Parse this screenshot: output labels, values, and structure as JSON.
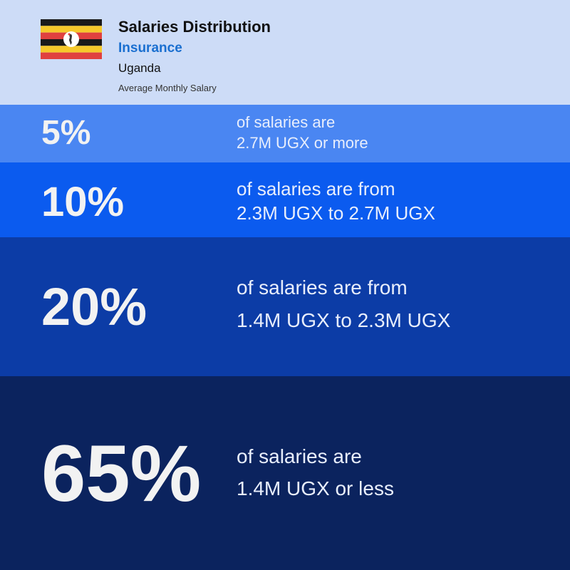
{
  "header": {
    "title": "Salaries Distribution",
    "sector": "Insurance",
    "country": "Uganda",
    "subtitle": "Average Monthly Salary"
  },
  "bands": [
    {
      "percent": "5%",
      "lines": [
        "of salaries are",
        "2.7M UGX or more"
      ]
    },
    {
      "percent": "10%",
      "lines": [
        "of salaries are from",
        "2.3M UGX to 2.7M UGX"
      ]
    },
    {
      "percent": "20%",
      "lines": [
        "of salaries are from",
        "1.4M UGX to 2.3M UGX"
      ]
    },
    {
      "percent": "65%",
      "lines": [
        "of salaries are",
        "1.4M UGX or less"
      ]
    }
  ]
}
